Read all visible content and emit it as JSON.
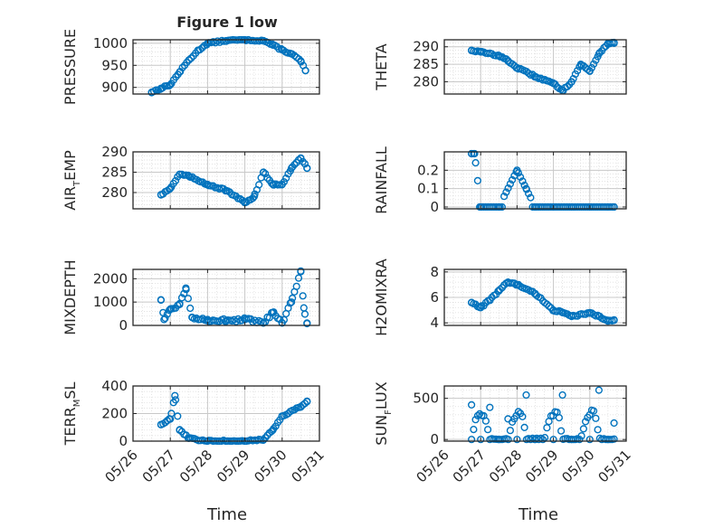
{
  "figure": {
    "background": "#ffffff",
    "marker_color": "#0072bd",
    "axis_color": "#262626",
    "grid_color": "#d9d9d9"
  },
  "chart_data": [
    {
      "type": "scatter",
      "title": "Figure 1 low",
      "ylabel": "PRESSURE",
      "xlim": [
        "05/26",
        "05/31"
      ],
      "ylim": [
        885,
        1008
      ],
      "yticks": [
        "900",
        "950",
        "1000"
      ],
      "grid": true,
      "x": [
        "05/26 12:00",
        "05/26 18:00",
        "05/27 00:00",
        "05/27 06:00",
        "05/27 12:00",
        "05/27 18:00",
        "05/28 00:00",
        "05/28 12:00",
        "05/29 00:00",
        "05/29 12:00",
        "05/29 18:00",
        "05/30 00:00",
        "05/30 06:00",
        "05/30 12:00",
        "05/30 15:00"
      ],
      "y": [
        889,
        898,
        906,
        935,
        962,
        984,
        1000,
        1006,
        1008,
        1006,
        996,
        985,
        976,
        960,
        938
      ],
      "marker": "circle"
    },
    {
      "type": "scatter",
      "ylabel": "THETA",
      "xlim": [
        "05/26",
        "05/31"
      ],
      "ylim": [
        276.5,
        292
      ],
      "yticks": [
        "280",
        "285",
        "290"
      ],
      "grid": true,
      "x": [
        "05/26 18:00",
        "05/27 00:00",
        "05/27 12:00",
        "05/27 18:00",
        "05/28 00:00",
        "05/28 12:00",
        "05/29 00:00",
        "05/29 06:00",
        "05/29 12:00",
        "05/29 18:00",
        "05/30 00:00",
        "05/30 06:00",
        "05/30 12:00",
        "05/30 16:00"
      ],
      "y": [
        289,
        288.5,
        287.5,
        286,
        284,
        281.5,
        279.5,
        277.5,
        280,
        285,
        283,
        288,
        291,
        291
      ],
      "marker": "circle"
    },
    {
      "type": "scatter",
      "ylabel": "AIR_TEMP",
      "ylabel_main": "AIR",
      "ylabel_sub": "T",
      "ylabel_rest": "EMP",
      "xlim": [
        "05/26",
        "05/31"
      ],
      "ylim": [
        276,
        290
      ],
      "yticks": [
        "280",
        "285",
        "290"
      ],
      "grid": true,
      "x": [
        "05/26 18:00",
        "05/27 00:00",
        "05/27 06:00",
        "05/27 12:00",
        "05/28 00:00",
        "05/28 12:00",
        "05/29 00:00",
        "05/29 06:00",
        "05/29 12:00",
        "05/29 18:00",
        "05/30 00:00",
        "05/30 06:00",
        "05/30 12:00",
        "05/30 16:00"
      ],
      "y": [
        279.5,
        281,
        284.5,
        284,
        282,
        280.5,
        277.5,
        279,
        285,
        282,
        282,
        286,
        288.5,
        286
      ],
      "marker": "circle"
    },
    {
      "type": "scatter",
      "ylabel": "RAINFALL",
      "xlim": [
        "05/26",
        "05/31"
      ],
      "ylim": [
        -0.01,
        0.3
      ],
      "yticks": [
        "0",
        "0.1",
        "0.2"
      ],
      "grid": true,
      "x": [
        "05/26 18:00",
        "05/26 20:00",
        "05/27 00:00",
        "05/27 12:00",
        "05/28 00:00",
        "05/28 06:00",
        "05/28 12:00",
        "05/29 00:00",
        "05/29 12:00",
        "05/30 00:00",
        "05/30 12:00",
        "05/30 16:00"
      ],
      "y": [
        0.29,
        0.29,
        0,
        0,
        0.2,
        0.1,
        0,
        0,
        0,
        0,
        0,
        0
      ],
      "marker": "circle"
    },
    {
      "type": "scatter",
      "ylabel": "MIXDEPTH",
      "xlim": [
        "05/26",
        "05/31"
      ],
      "ylim": [
        0,
        2400
      ],
      "yticks": [
        "0",
        "1000",
        "2000"
      ],
      "grid": true,
      "x": [
        "05/26 18:00",
        "05/26 20:00",
        "05/27 00:00",
        "05/27 06:00",
        "05/27 10:00",
        "05/27 14:00",
        "05/28 00:00",
        "05/28 12:00",
        "05/29 00:00",
        "05/29 12:00",
        "05/29 18:00",
        "05/30 00:00",
        "05/30 06:00",
        "05/30 12:00",
        "05/30 14:00",
        "05/30 16:00"
      ],
      "y": [
        1100,
        250,
        700,
        900,
        1600,
        350,
        250,
        200,
        250,
        100,
        550,
        100,
        1000,
        2300,
        750,
        100
      ],
      "marker": "circle"
    },
    {
      "type": "scatter",
      "ylabel": "H2OMIXRA",
      "xlim": [
        "05/26",
        "05/31"
      ],
      "ylim": [
        3.8,
        8.2
      ],
      "yticks": [
        "4",
        "6",
        "8"
      ],
      "grid": true,
      "x": [
        "05/26 18:00",
        "05/27 00:00",
        "05/27 06:00",
        "05/27 12:00",
        "05/27 18:00",
        "05/28 00:00",
        "05/28 12:00",
        "05/29 00:00",
        "05/29 06:00",
        "05/29 12:00",
        "05/30 00:00",
        "05/30 06:00",
        "05/30 12:00",
        "05/30 16:00"
      ],
      "y": [
        5.6,
        5.2,
        5.8,
        6.5,
        7.2,
        7.0,
        6.3,
        5.0,
        4.8,
        4.5,
        4.8,
        4.5,
        4.2,
        4.2
      ],
      "marker": "circle"
    },
    {
      "type": "scatter",
      "ylabel": "TERR_MSL",
      "ylabel_main": "TERR",
      "ylabel_sub": "M",
      "ylabel_rest": "SL",
      "xlim": [
        "05/26",
        "05/31"
      ],
      "ylim": [
        0,
        400
      ],
      "yticks": [
        "0",
        "200",
        "400"
      ],
      "grid": true,
      "x": [
        "05/26 18:00",
        "05/27 00:00",
        "05/27 03:00",
        "05/27 06:00",
        "05/27 12:00",
        "05/28 00:00",
        "05/28 12:00",
        "05/29 00:00",
        "05/29 12:00",
        "05/29 18:00",
        "05/30 00:00",
        "05/30 12:00",
        "05/30 16:00"
      ],
      "y": [
        120,
        160,
        330,
        80,
        20,
        0,
        0,
        0,
        10,
        80,
        180,
        250,
        290
      ],
      "marker": "circle"
    },
    {
      "type": "scatter",
      "ylabel": "SUN_FLUX",
      "ylabel_main": "SUN",
      "ylabel_sub": "F",
      "ylabel_rest": "LUX",
      "xlim": [
        "05/26",
        "05/31"
      ],
      "ylim": [
        -20,
        650
      ],
      "yticks": [
        "0",
        "500"
      ],
      "grid": true,
      "x": [
        "05/26 18:00",
        "05/27 00:00",
        "05/27 06:00",
        "05/27 12:00",
        "05/27 18:00",
        "05/28 00:00",
        "05/28 06:00",
        "05/28 12:00",
        "05/29 00:00",
        "05/29 06:00",
        "05/29 12:00",
        "05/30 00:00",
        "05/30 06:00",
        "05/30 12:00",
        "05/30 16:00"
      ],
      "y": [
        420,
        0,
        390,
        0,
        250,
        0,
        540,
        0,
        0,
        540,
        0,
        0,
        600,
        0,
        200
      ],
      "marker": "circle"
    }
  ],
  "xaxis": {
    "ticks": [
      "05/26",
      "05/27",
      "05/28",
      "05/29",
      "05/30",
      "05/31"
    ],
    "label": "Time"
  }
}
